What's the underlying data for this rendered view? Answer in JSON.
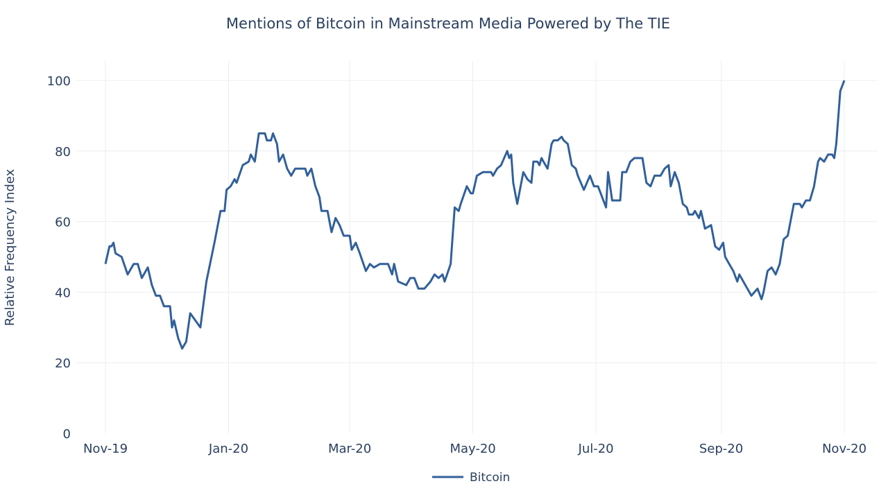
{
  "chart_data": {
    "type": "line",
    "title": "Mentions of Bitcoin in Mainstream Media Powered by The TIE",
    "xlabel": "",
    "ylabel": "Relative Frequency Index",
    "xlim": [
      "2019-11-01",
      "2020-11-01"
    ],
    "ylim": [
      0,
      100
    ],
    "grid": true,
    "legend_position": "bottom-center",
    "xticks": [
      {
        "date": "2019-11-01",
        "label": "Nov-19"
      },
      {
        "date": "2020-01-01",
        "label": "Jan-20"
      },
      {
        "date": "2020-03-01",
        "label": "Mar-20"
      },
      {
        "date": "2020-05-01",
        "label": "May-20"
      },
      {
        "date": "2020-07-01",
        "label": "Jul-20"
      },
      {
        "date": "2020-09-01",
        "label": "Sep-20"
      },
      {
        "date": "2020-11-01",
        "label": "Nov-20"
      }
    ],
    "yticks": [
      0,
      20,
      40,
      60,
      80,
      100
    ],
    "colors": {
      "line": "#31609a",
      "grid": "#ebedf1",
      "text": "#2a3f5f"
    },
    "series": [
      {
        "name": "Bitcoin",
        "x": [
          "2019-11-01",
          "2019-11-03",
          "2019-11-04",
          "2019-11-05",
          "2019-11-06",
          "2019-11-09",
          "2019-11-12",
          "2019-11-15",
          "2019-11-17",
          "2019-11-19",
          "2019-11-22",
          "2019-11-24",
          "2019-11-26",
          "2019-11-28",
          "2019-11-30",
          "2019-12-03",
          "2019-12-04",
          "2019-12-05",
          "2019-12-07",
          "2019-12-09",
          "2019-12-11",
          "2019-12-13",
          "2019-12-18",
          "2019-12-21",
          "2019-12-25",
          "2019-12-28",
          "2019-12-30",
          "2019-12-31",
          "2020-01-02",
          "2020-01-04",
          "2020-01-05",
          "2020-01-08",
          "2020-01-11",
          "2020-01-12",
          "2020-01-14",
          "2020-01-16",
          "2020-01-19",
          "2020-01-20",
          "2020-01-22",
          "2020-01-23",
          "2020-01-25",
          "2020-01-26",
          "2020-01-28",
          "2020-01-30",
          "2020-02-01",
          "2020-02-03",
          "2020-02-08",
          "2020-02-09",
          "2020-02-11",
          "2020-02-13",
          "2020-02-15",
          "2020-02-16",
          "2020-02-19",
          "2020-02-21",
          "2020-02-23",
          "2020-02-25",
          "2020-02-27",
          "2020-03-01",
          "2020-03-02",
          "2020-03-04",
          "2020-03-06",
          "2020-03-09",
          "2020-03-11",
          "2020-03-13",
          "2020-03-16",
          "2020-03-18",
          "2020-03-20",
          "2020-03-22",
          "2020-03-23",
          "2020-03-25",
          "2020-03-29",
          "2020-03-31",
          "2020-04-02",
          "2020-04-04",
          "2020-04-07",
          "2020-04-10",
          "2020-04-12",
          "2020-04-14",
          "2020-04-16",
          "2020-04-17",
          "2020-04-20",
          "2020-04-22",
          "2020-04-24",
          "2020-04-25",
          "2020-04-28",
          "2020-04-30",
          "2020-05-01",
          "2020-05-03",
          "2020-05-06",
          "2020-05-10",
          "2020-05-11",
          "2020-05-13",
          "2020-05-15",
          "2020-05-18",
          "2020-05-19",
          "2020-05-20",
          "2020-05-21",
          "2020-05-23",
          "2020-05-26",
          "2020-05-28",
          "2020-05-30",
          "2020-05-31",
          "2020-06-02",
          "2020-06-03",
          "2020-06-04",
          "2020-06-06",
          "2020-06-07",
          "2020-06-09",
          "2020-06-10",
          "2020-06-12",
          "2020-06-14",
          "2020-06-15",
          "2020-06-17",
          "2020-06-19",
          "2020-06-21",
          "2020-06-22",
          "2020-06-25",
          "2020-06-28",
          "2020-06-30",
          "2020-07-02",
          "2020-07-04",
          "2020-07-06",
          "2020-07-07",
          "2020-07-09",
          "2020-07-13",
          "2020-07-14",
          "2020-07-16",
          "2020-07-18",
          "2020-07-20",
          "2020-07-21",
          "2020-07-24",
          "2020-07-26",
          "2020-07-28",
          "2020-07-30",
          "2020-08-02",
          "2020-08-04",
          "2020-08-06",
          "2020-08-07",
          "2020-08-09",
          "2020-08-11",
          "2020-08-13",
          "2020-08-15",
          "2020-08-16",
          "2020-08-18",
          "2020-08-19",
          "2020-08-21",
          "2020-08-22",
          "2020-08-24",
          "2020-08-27",
          "2020-08-29",
          "2020-08-31",
          "2020-09-02",
          "2020-09-03",
          "2020-09-05",
          "2020-09-07",
          "2020-09-09",
          "2020-09-10",
          "2020-09-13",
          "2020-09-16",
          "2020-09-19",
          "2020-09-21",
          "2020-09-22",
          "2020-09-24",
          "2020-09-26",
          "2020-09-28",
          "2020-09-30",
          "2020-10-02",
          "2020-10-04",
          "2020-10-07",
          "2020-10-09",
          "2020-10-10",
          "2020-10-11",
          "2020-10-13",
          "2020-10-15",
          "2020-10-17",
          "2020-10-19",
          "2020-10-20",
          "2020-10-22",
          "2020-10-24",
          "2020-10-26",
          "2020-10-27",
          "2020-10-28",
          "2020-10-30",
          "2020-11-01"
        ],
        "y": [
          48,
          53,
          53,
          54,
          51,
          50,
          45,
          48,
          48,
          44,
          47,
          42,
          39,
          39,
          36,
          36,
          30,
          32,
          27,
          24,
          26,
          34,
          30,
          43,
          54,
          63,
          63,
          69,
          70,
          72,
          71,
          76,
          77,
          79,
          77,
          85,
          85,
          83,
          83,
          85,
          82,
          77,
          79,
          75,
          73,
          75,
          75,
          73,
          75,
          70,
          67,
          63,
          63,
          57,
          61,
          59,
          56,
          56,
          52,
          54,
          51,
          46,
          48,
          47,
          48,
          48,
          48,
          45,
          48,
          43,
          42,
          44,
          44,
          41,
          41,
          43,
          45,
          44,
          45,
          43,
          48,
          64,
          63,
          65,
          70,
          68,
          68,
          73,
          74,
          74,
          73,
          75,
          76,
          80,
          78,
          79,
          71,
          65,
          74,
          72,
          71,
          77,
          77,
          76,
          78,
          76,
          75,
          82,
          83,
          83,
          84,
          83,
          82,
          76,
          75,
          73,
          69,
          73,
          70,
          70,
          67,
          64,
          74,
          66,
          66,
          74,
          74,
          77,
          78,
          78,
          78,
          71,
          70,
          73,
          73,
          75,
          76,
          70,
          74,
          71,
          65,
          64,
          62,
          62,
          63,
          61,
          63,
          58,
          59,
          53,
          52,
          54,
          50,
          48,
          46,
          43,
          45,
          42,
          39,
          41,
          38,
          40,
          46,
          47,
          45,
          48,
          55,
          56,
          65,
          65,
          65,
          64,
          66,
          66,
          70,
          77,
          78,
          77,
          79,
          79,
          78,
          82,
          97,
          100
        ]
      }
    ]
  }
}
